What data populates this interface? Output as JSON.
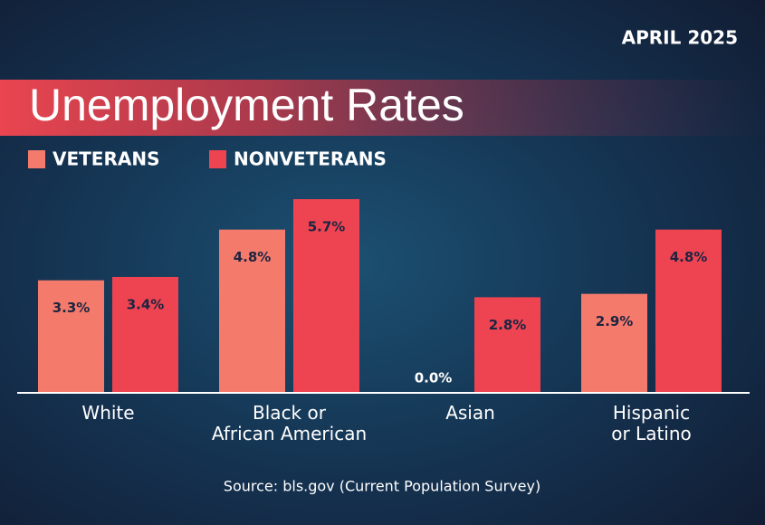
{
  "chart_data": {
    "type": "bar",
    "title": "Unemployment Rates",
    "date_label": "APRIL 2025",
    "source": "Source: bls.gov (Current Population Survey)",
    "categories": [
      "White",
      "Black or\nAfrican American",
      "Asian",
      "Hispanic\nor Latino"
    ],
    "series": [
      {
        "name": "VETERANS",
        "color": "#f47b6c",
        "values": [
          3.3,
          4.8,
          0.0,
          2.9
        ],
        "value_labels": [
          "3.3%",
          "4.8%",
          "0.0%",
          "2.9%"
        ]
      },
      {
        "name": "NONVETERANS",
        "color": "#ee4452",
        "values": [
          3.4,
          5.7,
          2.8,
          4.8
        ],
        "value_labels": [
          "3.4%",
          "5.7%",
          "2.8%",
          "4.8%"
        ]
      }
    ]
  }
}
